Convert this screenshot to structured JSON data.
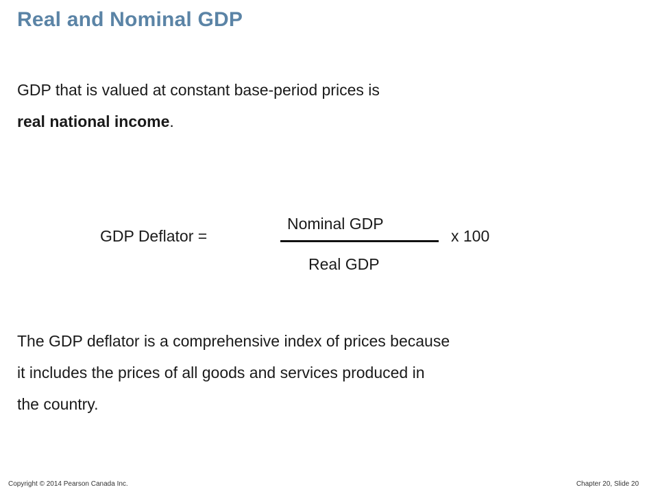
{
  "title": "Real and Nominal GDP",
  "intro": {
    "line1": "GDP that is valued at constant base-period prices is",
    "bold_term": "real national income",
    "line2_suffix": "."
  },
  "formula": {
    "label": "GDP Deflator  =",
    "numerator": "Nominal GDP",
    "denominator": "Real GDP",
    "multiplier": "x  100"
  },
  "explanation": {
    "line1": "The GDP deflator is a comprehensive index of prices because",
    "line2": "it includes the prices of all goods and services produced in",
    "line3": "the country."
  },
  "footer": {
    "copyright": "Copyright © 2014 Pearson Canada Inc.",
    "slide_ref": "Chapter 20, Slide  20"
  },
  "colors": {
    "title": "#5b84a6",
    "text": "#1a1a1a"
  }
}
